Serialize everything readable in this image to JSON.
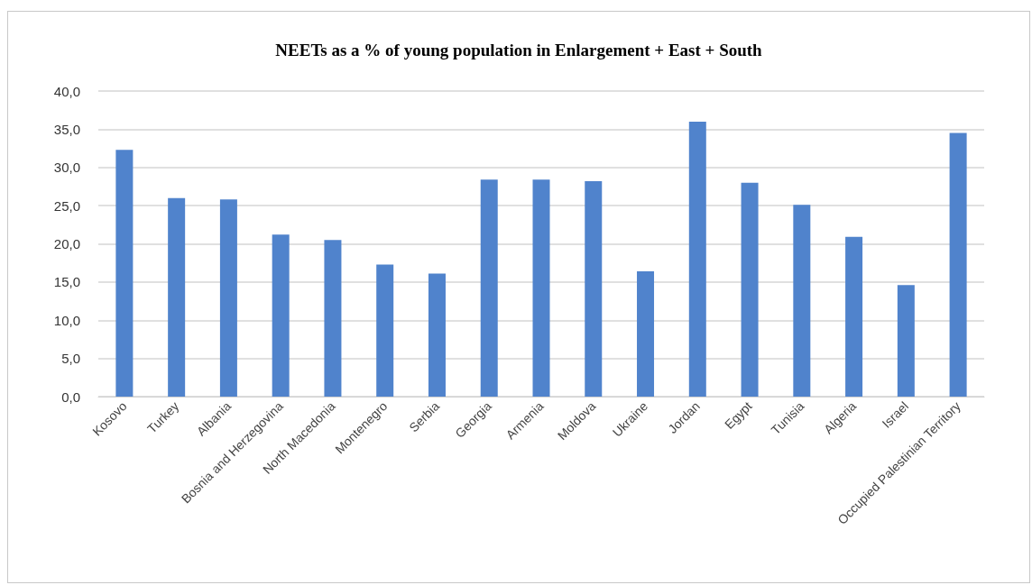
{
  "chart_data": {
    "type": "bar",
    "title": "NEETs as a % of young population in Enlargement + East + South",
    "categories": [
      "Kosovo",
      "Turkey",
      "Albania",
      "Bosnia and Herzegovina",
      "North Macedonia",
      "Montenegro",
      "Serbia",
      "Georgia",
      "Armenia",
      "Moldova",
      "Ukraine",
      "Jordan",
      "Egypt",
      "Tunisia",
      "Algeria",
      "Israel",
      "Occupied Palestinian Territory"
    ],
    "values": [
      32.3,
      26.0,
      25.8,
      21.2,
      20.5,
      17.3,
      16.1,
      28.4,
      28.4,
      28.2,
      16.4,
      36.0,
      28.0,
      25.1,
      20.9,
      14.6,
      34.5
    ],
    "color": "#5083cc",
    "ylim": [
      0,
      40
    ],
    "yticks": [
      {
        "value": 0,
        "label": "0,0"
      },
      {
        "value": 5,
        "label": "5,0"
      },
      {
        "value": 10,
        "label": "10,0"
      },
      {
        "value": 15,
        "label": "15,0"
      },
      {
        "value": 20,
        "label": "20,0"
      },
      {
        "value": 25,
        "label": "25,0"
      },
      {
        "value": 30,
        "label": "30,0"
      },
      {
        "value": 35,
        "label": "35,0"
      },
      {
        "value": 40,
        "label": "40,0"
      }
    ],
    "grid": "y"
  }
}
